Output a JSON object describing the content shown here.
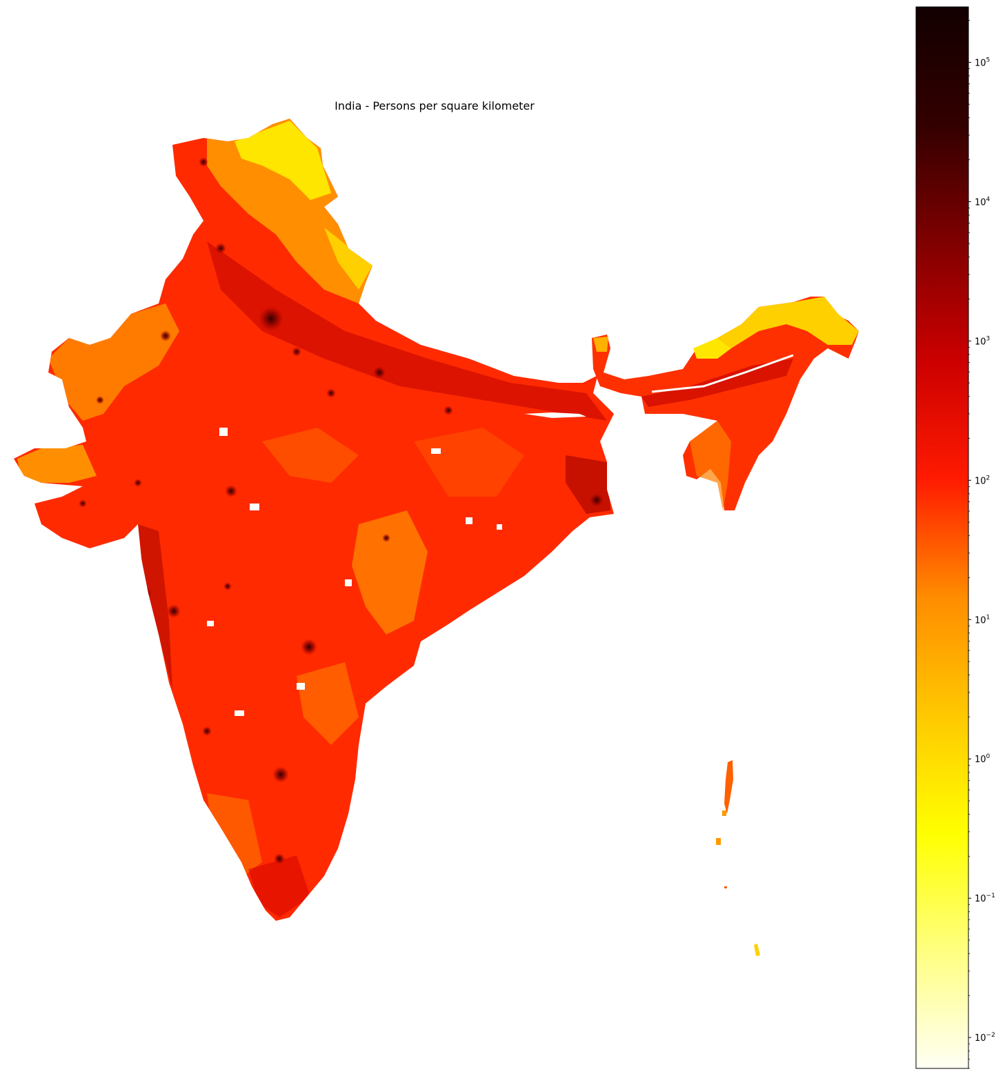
{
  "title": "India - Persons per square kilometer",
  "colorbar": {
    "scale": "log",
    "colormap": "hot_r",
    "range": [
      0.006,
      250000
    ],
    "colors": [
      "#fffff5",
      "#ffff80",
      "#ffff00",
      "#ffc800",
      "#ff8c00",
      "#ff1a00",
      "#cc0000",
      "#800000",
      "#330000",
      "#120000"
    ],
    "ticks": [
      {
        "base": "10",
        "exponent": "−2",
        "value": 0.01
      },
      {
        "base": "10",
        "exponent": "−1",
        "value": 0.1
      },
      {
        "base": "10",
        "exponent": "0",
        "value": 1
      },
      {
        "base": "10",
        "exponent": "1",
        "value": 10
      },
      {
        "base": "10",
        "exponent": "2",
        "value": 100
      },
      {
        "base": "10",
        "exponent": "3",
        "value": 1000
      },
      {
        "base": "10",
        "exponent": "4",
        "value": 10000
      },
      {
        "base": "10",
        "exponent": "5",
        "value": 100000
      }
    ]
  },
  "map_colors": {
    "base": "#ff2a00",
    "dense": "#b00000",
    "sparse": "#ffa000",
    "mountain": "#ffe600",
    "city": "#3a0000"
  }
}
